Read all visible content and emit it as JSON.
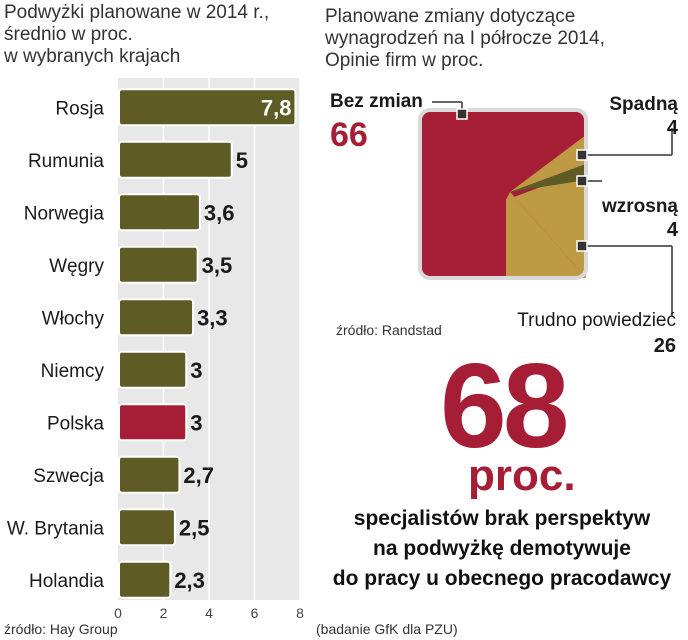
{
  "colors": {
    "olive": "#5e5b25",
    "crimson": "#a51e36",
    "gold": "#bf9a45",
    "panel": "#e8e8e8"
  },
  "left": {
    "title_lines": [
      "Podwyżki planowane w 2014 r.,",
      "średnio w proc.",
      "w wybranych krajach"
    ],
    "source": "źródło: Hay Group"
  },
  "right": {
    "title_lines": [
      "Planowane zmiany dotyczące",
      "wynagrodzeń na I półrocze 2014,",
      "Opinie firm w proc."
    ],
    "source": "źródło: Randstad"
  },
  "callout": {
    "value": "68",
    "unit": "proc.",
    "lines": [
      "specjalistów brak perspektyw",
      "na podwyżkę demotywuje",
      "do pracy u obecnego pracodawcy"
    ],
    "source": "(badanie GfK dla PZU)"
  },
  "chart_data": [
    {
      "type": "bar",
      "orientation": "horizontal",
      "title": "Podwyżki planowane w 2014 r., średnio w proc. w wybranych krajach",
      "categories": [
        "Rosja",
        "Rumunia",
        "Norwegia",
        "Węgry",
        "Włochy",
        "Niemcy",
        "Polska",
        "Szwecja",
        "W. Brytania",
        "Holandia"
      ],
      "values": [
        7.8,
        5,
        3.6,
        3.5,
        3.3,
        3,
        3,
        2.7,
        2.5,
        2.3
      ],
      "value_labels": [
        "7,8",
        "5",
        "3,6",
        "3,5",
        "3,3",
        "3",
        "3",
        "2,7",
        "2,5",
        "2,3"
      ],
      "highlight": "Polska",
      "xlim": [
        0,
        8
      ],
      "xticks": [
        0,
        2,
        4,
        6,
        8
      ],
      "grid": true
    },
    {
      "type": "pie",
      "title": "Planowane zmiany dotyczące wynagrodzeń na I półrocze 2014, Opinie firm w proc.",
      "slices": [
        {
          "label": "Bez zmian",
          "value": 66,
          "value_label": "66",
          "color": "#a51e36"
        },
        {
          "label": "Spadną",
          "value": 4,
          "value_label": "4",
          "color": "#bf9a45"
        },
        {
          "label": "wzrosną",
          "value": 4,
          "value_label": "4",
          "color": "#5e5b25"
        },
        {
          "label": "Trudno powiedzieć",
          "value": 26,
          "value_label": "26",
          "color": "#bf9a45"
        }
      ]
    }
  ]
}
